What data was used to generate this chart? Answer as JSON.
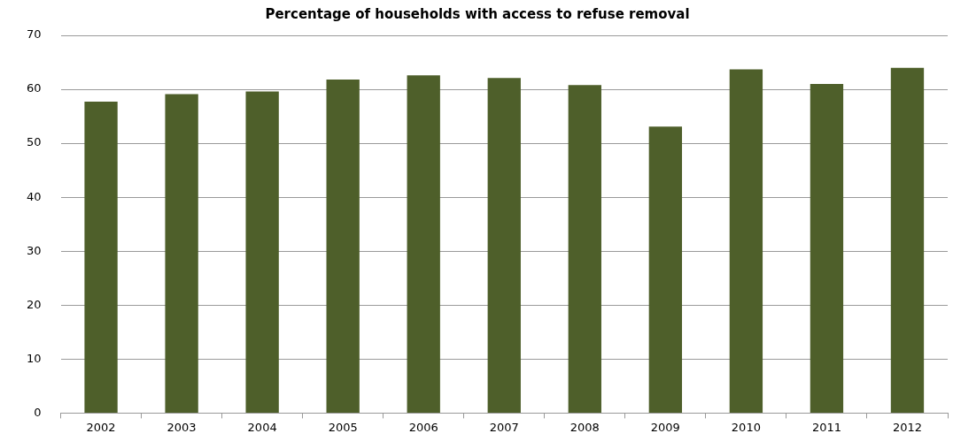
{
  "chart_data": {
    "type": "bar",
    "title": "Percentage of households with access to refuse removal",
    "categories": [
      "2002",
      "2003",
      "2004",
      "2005",
      "2006",
      "2007",
      "2008",
      "2009",
      "2010",
      "2011",
      "2012"
    ],
    "values": [
      57.7,
      59.1,
      59.6,
      61.8,
      62.6,
      62.1,
      60.8,
      53.1,
      63.7,
      61.0,
      64.0
    ],
    "color": "#4e5f2a",
    "ylim": [
      0,
      70
    ],
    "yticks": [
      0,
      10,
      20,
      30,
      40,
      50,
      60,
      70
    ],
    "grid": "y",
    "legend": false
  }
}
